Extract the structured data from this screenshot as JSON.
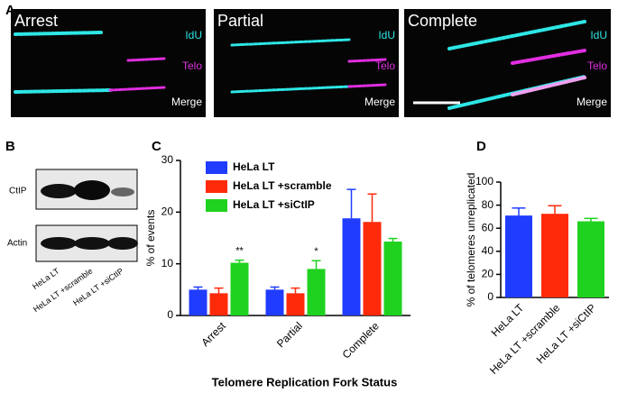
{
  "panels": {
    "a": "A",
    "b": "B",
    "c": "C",
    "d": "D"
  },
  "microscopy": [
    {
      "title": "Arrest",
      "channels": [
        "IdU",
        "Telo",
        "Merge"
      ]
    },
    {
      "title": "Partial",
      "channels": [
        "IdU",
        "Telo",
        "Merge"
      ]
    },
    {
      "title": "Complete",
      "channels": [
        "IdU",
        "Telo",
        "Merge"
      ]
    }
  ],
  "blot": {
    "rows": [
      "CtIP",
      "Actin"
    ],
    "lanes": [
      "HeLa LT",
      "HeLa LT +scramble",
      "HeLa LT +siCtIP"
    ]
  },
  "chart_data": [
    {
      "type": "bar",
      "xlabel": "Telomere Replication Fork Status",
      "ylabel": "% of events",
      "categories": [
        "Arrest",
        "Partial",
        "Complete"
      ],
      "series": [
        {
          "name": "HeLa LT",
          "color": "#1f3cff",
          "values": [
            5.0,
            5.0,
            18.8
          ],
          "errors": [
            0.5,
            0.5,
            5.6
          ]
        },
        {
          "name": "HeLa LT +scramble",
          "color": "#ff2a0a",
          "values": [
            4.3,
            4.3,
            18.1
          ],
          "errors": [
            1.0,
            1.0,
            5.4
          ]
        },
        {
          "name": "HeLa LT +siCtIP",
          "color": "#1fd21f",
          "values": [
            10.2,
            9.0,
            14.3
          ],
          "errors": [
            0.5,
            1.6,
            0.6
          ]
        }
      ],
      "annotations": [
        "**",
        "*"
      ],
      "ylim": [
        0,
        30
      ],
      "yticks": [
        0,
        10,
        20,
        30
      ]
    },
    {
      "type": "bar",
      "ylabel": "% of telomeres unreplicated",
      "categories": [
        "HeLa LT",
        "HeLa LT +scramble",
        "HeLa LT +siCtIP"
      ],
      "values": [
        71,
        72.5,
        66
      ],
      "errors": [
        6.5,
        7,
        2.5
      ],
      "colors": [
        "#1f3cff",
        "#ff2a0a",
        "#1fd21f"
      ],
      "ylim": [
        0,
        100
      ],
      "yticks": [
        0,
        20,
        40,
        60,
        80,
        100
      ]
    }
  ]
}
